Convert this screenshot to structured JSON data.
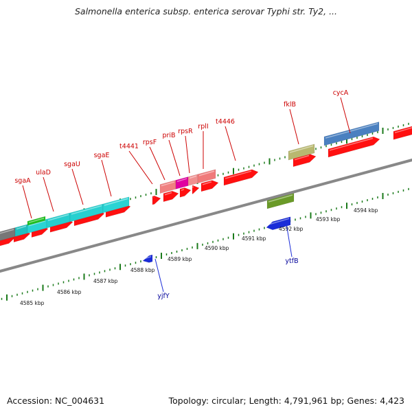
{
  "header": {
    "title": "Salmonella enterica subsp. enterica serovar Typhi str. Ty2, ..."
  },
  "footer": {
    "accession": "Accession: NC_004631",
    "summary": "Topology: circular; Length: 4,791,961 bp; Genes: 4,423"
  },
  "colors": {
    "forward_gene": "#ff1010",
    "reverse_gene": "#1a2cd8",
    "label_forward": "#cc0000",
    "label_reverse": "#000099",
    "tick": "#1a7a1a",
    "backbone": "#888888"
  },
  "coordinates": {
    "labels": [
      "4585 kbp",
      "4586 kbp",
      "4587 kbp",
      "4588 kbp",
      "4589 kbp",
      "4590 kbp",
      "4591 kbp",
      "4592 kbp",
      "4593 kbp",
      "4594 kbp"
    ]
  },
  "genes": {
    "forward_labels": [
      "sgaA",
      "ulaD",
      "sgaU",
      "sgaE",
      "t4441",
      "rpsF",
      "priB",
      "rpsR",
      "rplI",
      "t4446",
      "fklB",
      "cycA"
    ],
    "reverse_labels": [
      "yjfY",
      "ytfB"
    ]
  }
}
